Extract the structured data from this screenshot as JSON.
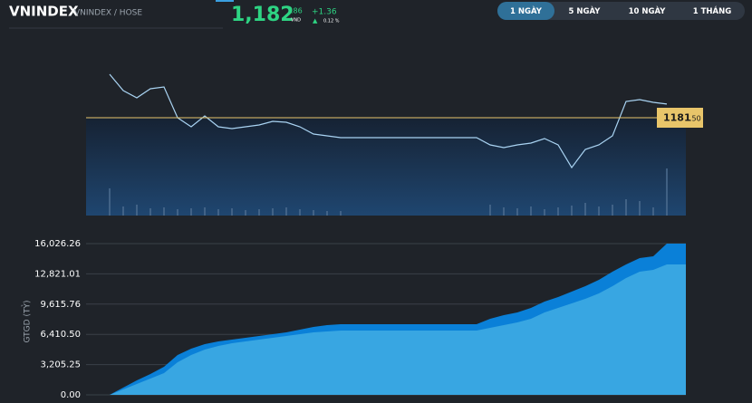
{
  "header": {
    "symbol": "VNINDEX",
    "exchange": "VNINDEX / HOSE",
    "price": "1,182",
    "price_decimal": ".86",
    "currency": "VND",
    "change": "+1.36",
    "change_arrow": "▲",
    "change_pct": "0.12 %"
  },
  "range_buttons": [
    "1 NGÀY",
    "5 NGÀY",
    "10 NGÀY",
    "1 THÁNG"
  ],
  "active_button": 0,
  "chart_data": [
    {
      "type": "line",
      "ylim": [
        1171.78,
        1188.7
      ],
      "y2lim": [
        0,
        188
      ],
      "reference_line": {
        "value": 1181.5,
        "label": "1181",
        "label_decimal": ".50",
        "color": "#e8c56a"
      },
      "series": [
        {
          "color": "#a9d3f2",
          "values": [
            1185.82,
            1184.2,
            1183.48,
            1184.38,
            1184.56,
            1181.5,
            1180.6,
            1181.68,
            1180.6,
            1180.42,
            1180.6,
            1180.78,
            1181.14,
            1181.05,
            1180.6,
            1179.88,
            1179.7,
            1179.52,
            1179.52,
            1179.52,
            1179.52,
            1179.52,
            1179.52,
            1179.52,
            1179.52,
            1179.52,
            1179.52,
            1179.52,
            1178.8,
            1178.53,
            1178.8,
            1178.98,
            1179.43,
            1178.8,
            1176.55,
            1178.35,
            1178.8,
            1179.7,
            1183.12,
            1183.3,
            1183.03,
            1182.86
          ]
        },
        {
          "type": "bar",
          "axis": "y2",
          "color": "#4d6d8f",
          "values": [
            30,
            10,
            12,
            8,
            9,
            7,
            8,
            9,
            7,
            8,
            6,
            7,
            8,
            9,
            7,
            6,
            5,
            5,
            0,
            0,
            0,
            0,
            0,
            0,
            0,
            0,
            0,
            0,
            12,
            9,
            8,
            10,
            7,
            9,
            11,
            14,
            10,
            12,
            18,
            16,
            9,
            52
          ]
        }
      ]
    },
    {
      "type": "area",
      "ylabel": "GTGD (TỶ)",
      "ylim": [
        0,
        16026.26
      ],
      "yticks": [
        {
          "value": 0,
          "label": "0.00"
        },
        {
          "value": 3205.25,
          "label": "3,205.25"
        },
        {
          "value": 6410.5,
          "label": "6,410.50"
        },
        {
          "value": 9615.76,
          "label": "9,615.76"
        },
        {
          "value": 12821.01,
          "label": "12,821.01"
        },
        {
          "value": 16026.26,
          "label": "16,026.26"
        }
      ],
      "grid": true,
      "series": [
        {
          "color": "#0a80d8",
          "values": [
            0,
            767.8,
            1535.5,
            2207.3,
            2975.1,
            4222.7,
            4894.5,
            5374.3,
            5662.2,
            5854.2,
            6046.1,
            6238.1,
            6430,
            6621.9,
            6909.8,
            7197.8,
            7389.7,
            7485.7,
            7485.7,
            7485.7,
            7485.7,
            7485.7,
            7485.7,
            7485.7,
            7485.7,
            7485.7,
            7485.7,
            7485.7,
            8061.5,
            8445.4,
            8733.3,
            9213.1,
            9884.9,
            10364.8,
            10940.6,
            11516.4,
            12188.2,
            13051.9,
            13819.7,
            14491.5,
            14683.4,
            16026.26
          ]
        },
        {
          "color": "#38a6e2",
          "values": [
            0,
            575.8,
            1151.6,
            1727.5,
            2303.3,
            3454.9,
            4222.7,
            4798.5,
            5182.4,
            5470.3,
            5662.2,
            5854.2,
            6046.1,
            6238.1,
            6430,
            6621.9,
            6717.9,
            6813.9,
            6813.9,
            6813.9,
            6813.9,
            6813.9,
            6813.9,
            6813.9,
            6813.9,
            6813.9,
            6813.9,
            6813.9,
            7101.8,
            7389.7,
            7677.6,
            8061.5,
            8733.3,
            9213.1,
            9693,
            10172.8,
            10748.6,
            11516.4,
            12380.1,
            13051.9,
            13243.9,
            13819.7
          ]
        }
      ]
    }
  ]
}
